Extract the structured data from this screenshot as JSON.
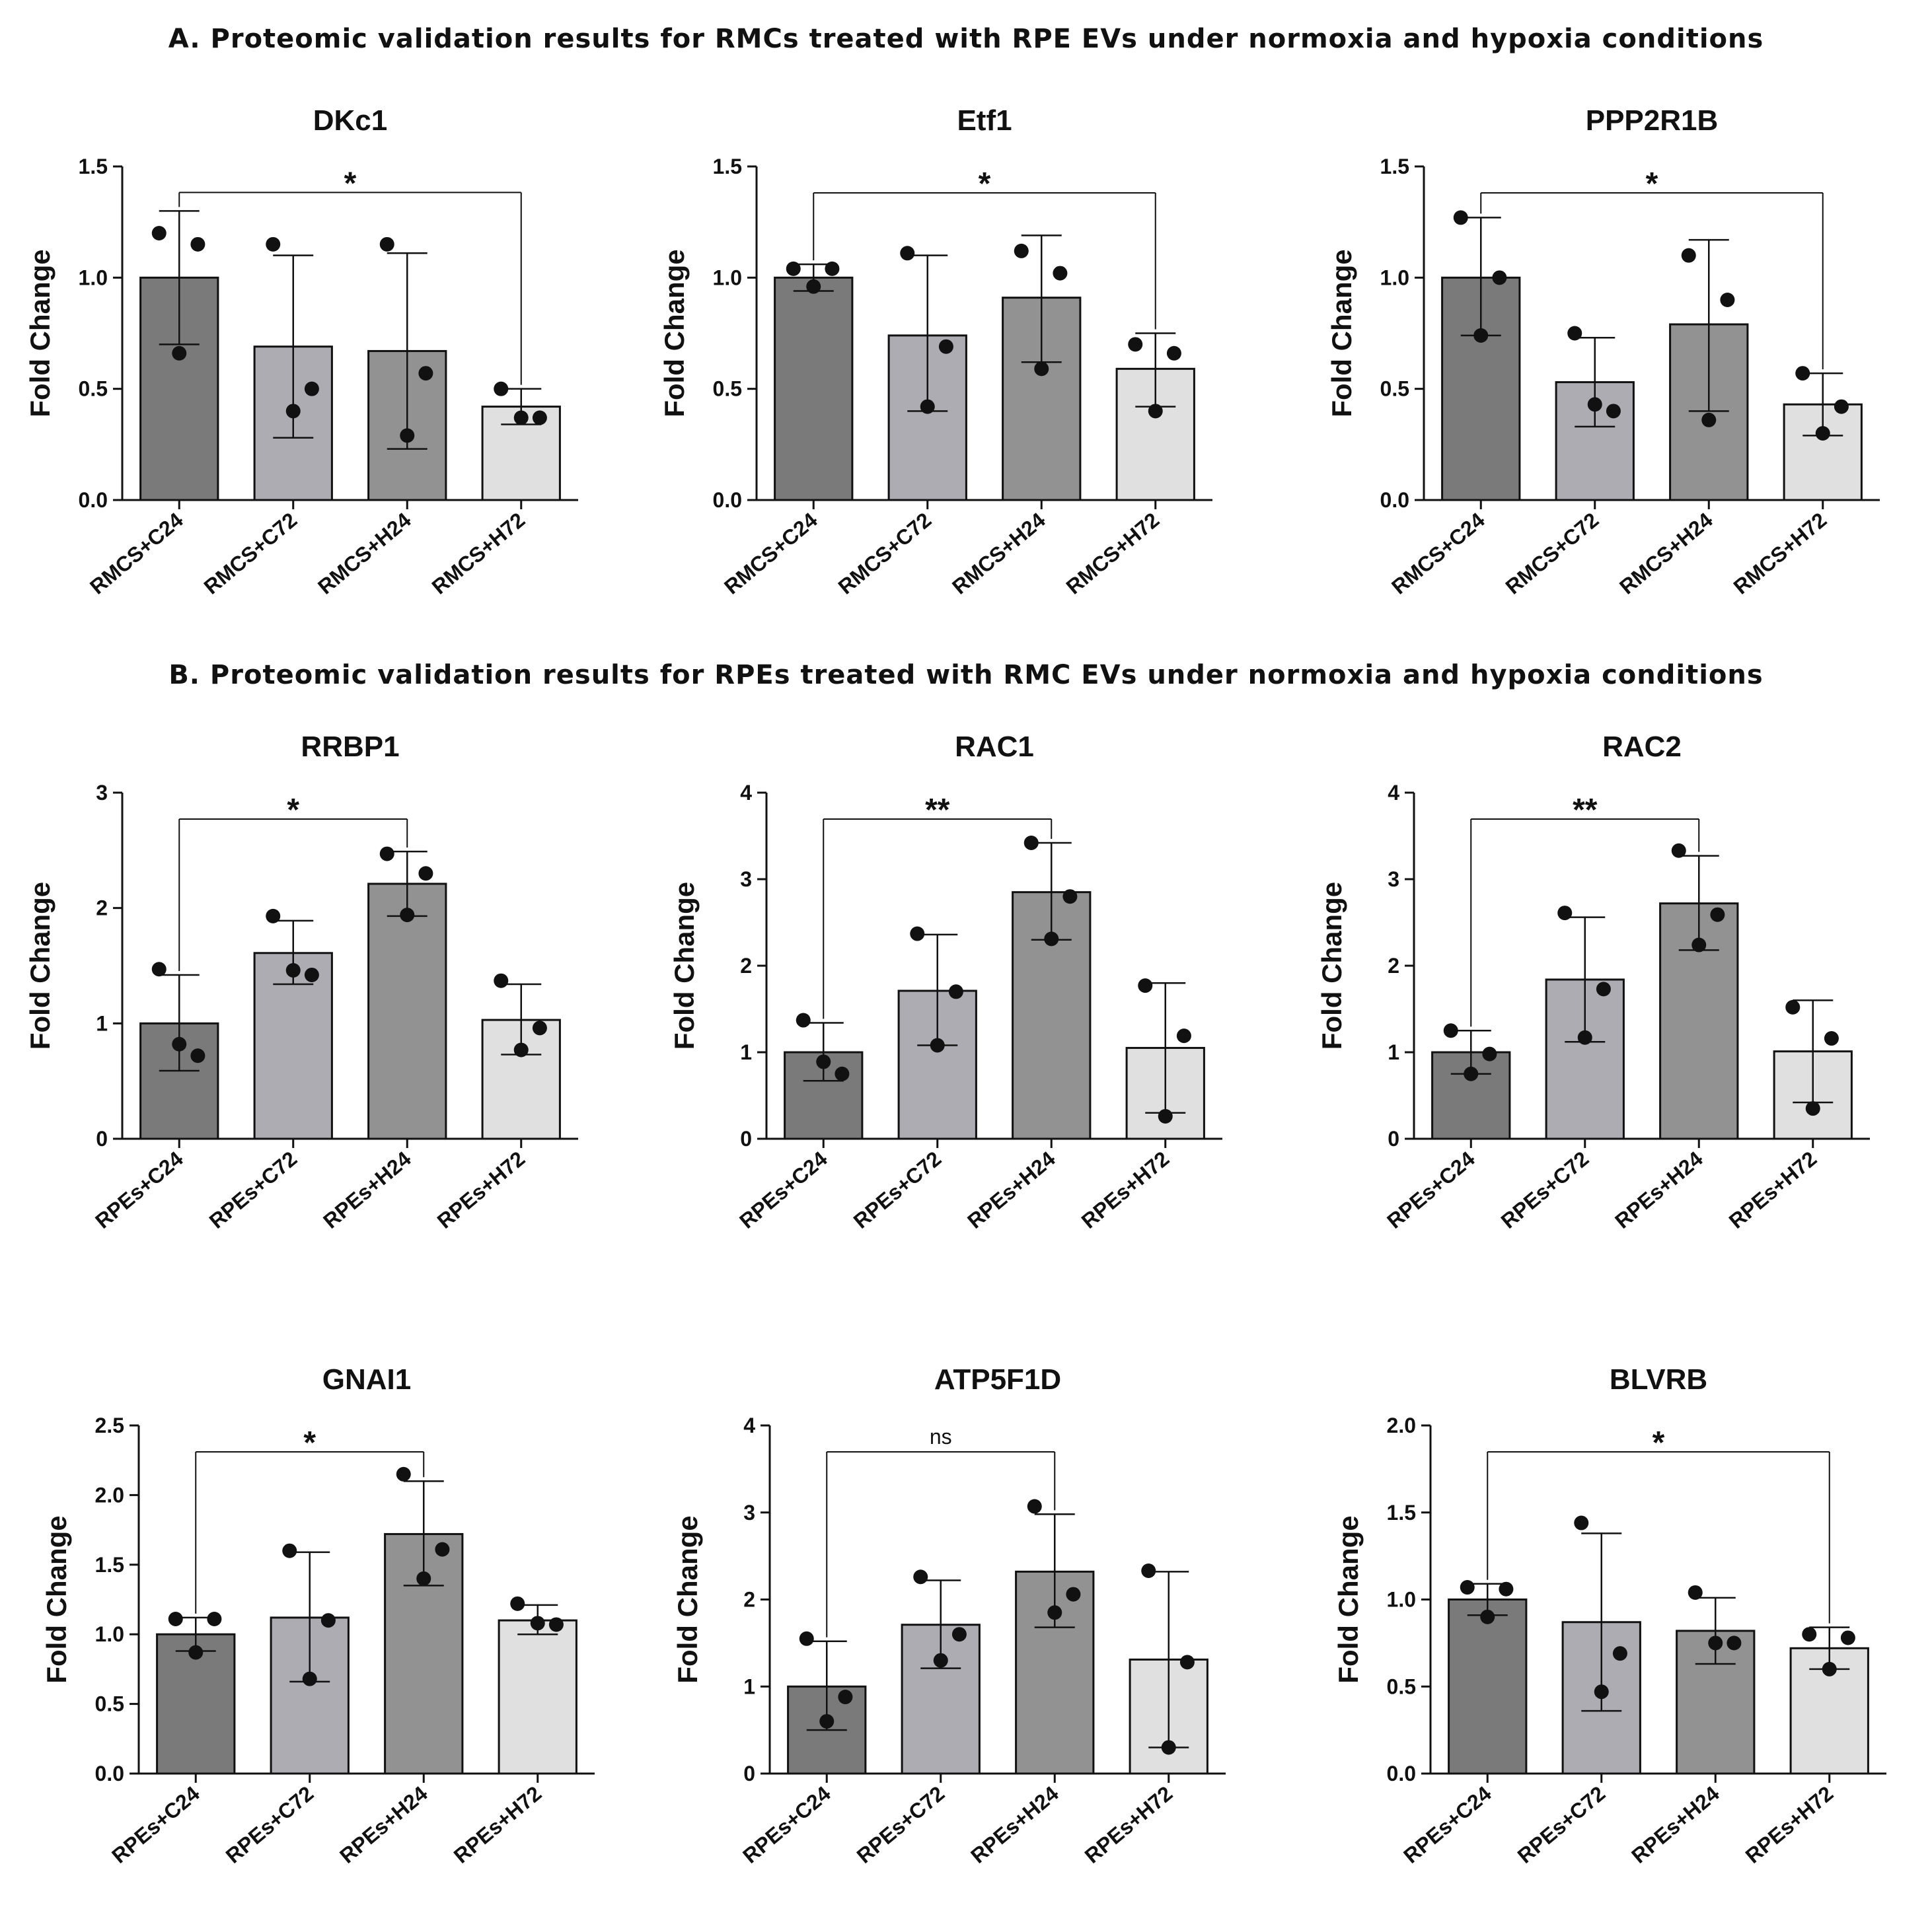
{
  "sections": [
    {
      "title": "A. Proteomic validation results for RMCs treated with RPE EVs under normoxia and hypoxia conditions"
    },
    {
      "title": "B. Proteomic validation results for RPEs treated with RMC EVs under normoxia and hypoxia conditions"
    }
  ],
  "colors": {
    "bar_C24": "#7a7a7a",
    "bar_C72": "#acacb2",
    "bar_H24": "#929292",
    "bar_H72": "#e0e0e0",
    "ink": "#111111"
  },
  "chart_data": [
    {
      "type": "bar",
      "title": "DKc1",
      "ylabel": "Fold Change",
      "ylim": [
        0,
        1.5
      ],
      "yticks": [
        "0.0",
        "0.5",
        "1.0",
        "1.5"
      ],
      "categories": [
        "RMCS+C24",
        "RMCS+C72",
        "RMCS+H24",
        "RMCS+H72"
      ],
      "values": [
        1.0,
        0.69,
        0.67,
        0.42
      ],
      "errors": [
        [
          0.7,
          1.3
        ],
        [
          0.28,
          1.1
        ],
        [
          0.23,
          1.11
        ],
        [
          0.34,
          0.5
        ]
      ],
      "points": [
        [
          1.2,
          1.15,
          0.66
        ],
        [
          1.15,
          0.5,
          0.4
        ],
        [
          1.15,
          0.57,
          0.29
        ],
        [
          0.5,
          0.37,
          0.37
        ]
      ],
      "comparison": {
        "from": 0,
        "to": 3,
        "label": "*"
      }
    },
    {
      "type": "bar",
      "title": "Etf1",
      "ylabel": "Fold Change",
      "ylim": [
        0,
        1.5
      ],
      "yticks": [
        "0.0",
        "0.5",
        "1.0",
        "1.5"
      ],
      "categories": [
        "RMCS+C24",
        "RMCS+C72",
        "RMCS+H24",
        "RMCS+H72"
      ],
      "values": [
        1.0,
        0.74,
        0.91,
        0.59
      ],
      "errors": [
        [
          0.94,
          1.06
        ],
        [
          0.4,
          1.1
        ],
        [
          0.62,
          1.19
        ],
        [
          0.42,
          0.75
        ]
      ],
      "points": [
        [
          1.04,
          1.04,
          0.96
        ],
        [
          1.11,
          0.69,
          0.42
        ],
        [
          1.12,
          1.02,
          0.59
        ],
        [
          0.7,
          0.66,
          0.4
        ]
      ],
      "comparison": {
        "from": 0,
        "to": 3,
        "label": "*"
      }
    },
    {
      "type": "bar",
      "title": "PPP2R1B",
      "ylabel": "Fold Change",
      "ylim": [
        0,
        1.5
      ],
      "yticks": [
        "0.0",
        "0.5",
        "1.0",
        "1.5"
      ],
      "categories": [
        "RMCS+C24",
        "RMCS+C72",
        "RMCS+H24",
        "RMCS+H72"
      ],
      "values": [
        1.0,
        0.53,
        0.79,
        0.43
      ],
      "errors": [
        [
          0.74,
          1.27
        ],
        [
          0.33,
          0.73
        ],
        [
          0.4,
          1.17
        ],
        [
          0.29,
          0.57
        ]
      ],
      "points": [
        [
          1.27,
          1.0,
          0.74
        ],
        [
          0.75,
          0.4,
          0.43
        ],
        [
          1.1,
          0.9,
          0.36
        ],
        [
          0.57,
          0.42,
          0.3
        ]
      ],
      "comparison": {
        "from": 0,
        "to": 3,
        "label": "*"
      }
    },
    {
      "type": "bar",
      "title": "RRBP1",
      "ylabel": "Fold Change",
      "ylim": [
        0,
        3
      ],
      "yticks": [
        "0",
        "1",
        "2",
        "3"
      ],
      "categories": [
        "RPEs+C24",
        "RPEs+C72",
        "RPEs+H24",
        "RPEs+H72"
      ],
      "values": [
        1.0,
        1.61,
        2.21,
        1.03
      ],
      "errors": [
        [
          0.59,
          1.42
        ],
        [
          1.34,
          1.89
        ],
        [
          1.93,
          2.49
        ],
        [
          0.73,
          1.34
        ]
      ],
      "points": [
        [
          1.47,
          0.72,
          0.82
        ],
        [
          1.93,
          1.42,
          1.46
        ],
        [
          2.47,
          2.3,
          1.94
        ],
        [
          1.37,
          0.96,
          0.77
        ]
      ],
      "comparison": {
        "from": 0,
        "to": 2,
        "label": "*"
      }
    },
    {
      "type": "bar",
      "title": "RAC1",
      "ylabel": "Fold Change",
      "ylim": [
        0,
        4
      ],
      "yticks": [
        "0",
        "1",
        "2",
        "3",
        "4"
      ],
      "categories": [
        "RPEs+C24",
        "RPEs+C72",
        "RPEs+H24",
        "RPEs+H72"
      ],
      "values": [
        1.0,
        1.71,
        2.85,
        1.05
      ],
      "errors": [
        [
          0.67,
          1.34
        ],
        [
          1.08,
          2.36
        ],
        [
          2.3,
          3.42
        ],
        [
          0.3,
          1.8
        ]
      ],
      "points": [
        [
          1.37,
          0.75,
          0.89
        ],
        [
          2.37,
          1.7,
          1.08
        ],
        [
          3.42,
          2.8,
          2.31
        ],
        [
          1.77,
          1.19,
          0.26
        ]
      ],
      "comparison": {
        "from": 0,
        "to": 2,
        "label": "**"
      }
    },
    {
      "type": "bar",
      "title": "RAC2",
      "ylabel": "Fold Change",
      "ylim": [
        0,
        4
      ],
      "yticks": [
        "0",
        "1",
        "2",
        "3",
        "4"
      ],
      "categories": [
        "RPEs+C24",
        "RPEs+C72",
        "RPEs+H24",
        "RPEs+H72"
      ],
      "values": [
        1.0,
        1.84,
        2.72,
        1.01
      ],
      "errors": [
        [
          0.75,
          1.25
        ],
        [
          1.12,
          2.56
        ],
        [
          2.18,
          3.27
        ],
        [
          0.42,
          1.6
        ]
      ],
      "points": [
        [
          1.25,
          0.98,
          0.75
        ],
        [
          2.61,
          1.73,
          1.17
        ],
        [
          3.33,
          2.59,
          2.24
        ],
        [
          1.52,
          1.16,
          0.35
        ]
      ],
      "comparison": {
        "from": 0,
        "to": 2,
        "label": "**"
      }
    },
    {
      "type": "bar",
      "title": "GNAI1",
      "ylabel": "Fold Change",
      "ylim": [
        0,
        2.5
      ],
      "yticks": [
        "0.0",
        "0.5",
        "1.0",
        "1.5",
        "2.0",
        "2.5"
      ],
      "categories": [
        "RPEs+C24",
        "RPEs+C72",
        "RPEs+H24",
        "RPEs+H72"
      ],
      "values": [
        1.0,
        1.12,
        1.72,
        1.1
      ],
      "errors": [
        [
          0.88,
          1.12
        ],
        [
          0.66,
          1.59
        ],
        [
          1.35,
          2.1
        ],
        [
          1.0,
          1.21
        ]
      ],
      "points": [
        [
          1.11,
          1.11,
          0.87
        ],
        [
          1.6,
          1.1,
          0.68
        ],
        [
          2.15,
          1.61,
          1.4
        ],
        [
          1.22,
          1.07,
          1.08
        ]
      ],
      "comparison": {
        "from": 0,
        "to": 2,
        "label": "*"
      }
    },
    {
      "type": "bar",
      "title": "ATP5F1D",
      "ylabel": "Fold Change",
      "ylim": [
        0,
        4
      ],
      "yticks": [
        "0",
        "1",
        "2",
        "3",
        "4"
      ],
      "categories": [
        "RPEs+C24",
        "RPEs+C72",
        "RPEs+H24",
        "RPEs+H72"
      ],
      "values": [
        1.0,
        1.71,
        2.32,
        1.31
      ],
      "errors": [
        [
          0.5,
          1.52
        ],
        [
          1.21,
          2.22
        ],
        [
          1.68,
          2.98
        ],
        [
          0.3,
          2.32
        ]
      ],
      "points": [
        [
          1.55,
          0.88,
          0.6
        ],
        [
          2.26,
          1.6,
          1.3
        ],
        [
          3.07,
          2.06,
          1.85
        ],
        [
          2.33,
          1.28,
          0.3
        ]
      ],
      "comparison": {
        "from": 0,
        "to": 2,
        "label": "ns"
      }
    },
    {
      "type": "bar",
      "title": "BLVRB",
      "ylabel": "Fold Change",
      "ylim": [
        0,
        2
      ],
      "yticks": [
        "0.0",
        "0.5",
        "1.0",
        "1.5",
        "2.0"
      ],
      "categories": [
        "RPEs+C24",
        "RPEs+C72",
        "RPEs+H24",
        "RPEs+H72"
      ],
      "values": [
        1.0,
        0.87,
        0.82,
        0.72
      ],
      "errors": [
        [
          0.91,
          1.09
        ],
        [
          0.36,
          1.38
        ],
        [
          0.63,
          1.01
        ],
        [
          0.6,
          0.84
        ]
      ],
      "points": [
        [
          1.07,
          1.06,
          0.9
        ],
        [
          1.44,
          0.69,
          0.47
        ],
        [
          1.04,
          0.75,
          0.75
        ],
        [
          0.8,
          0.78,
          0.6
        ]
      ],
      "comparison": {
        "from": 0,
        "to": 3,
        "label": "*"
      }
    }
  ]
}
